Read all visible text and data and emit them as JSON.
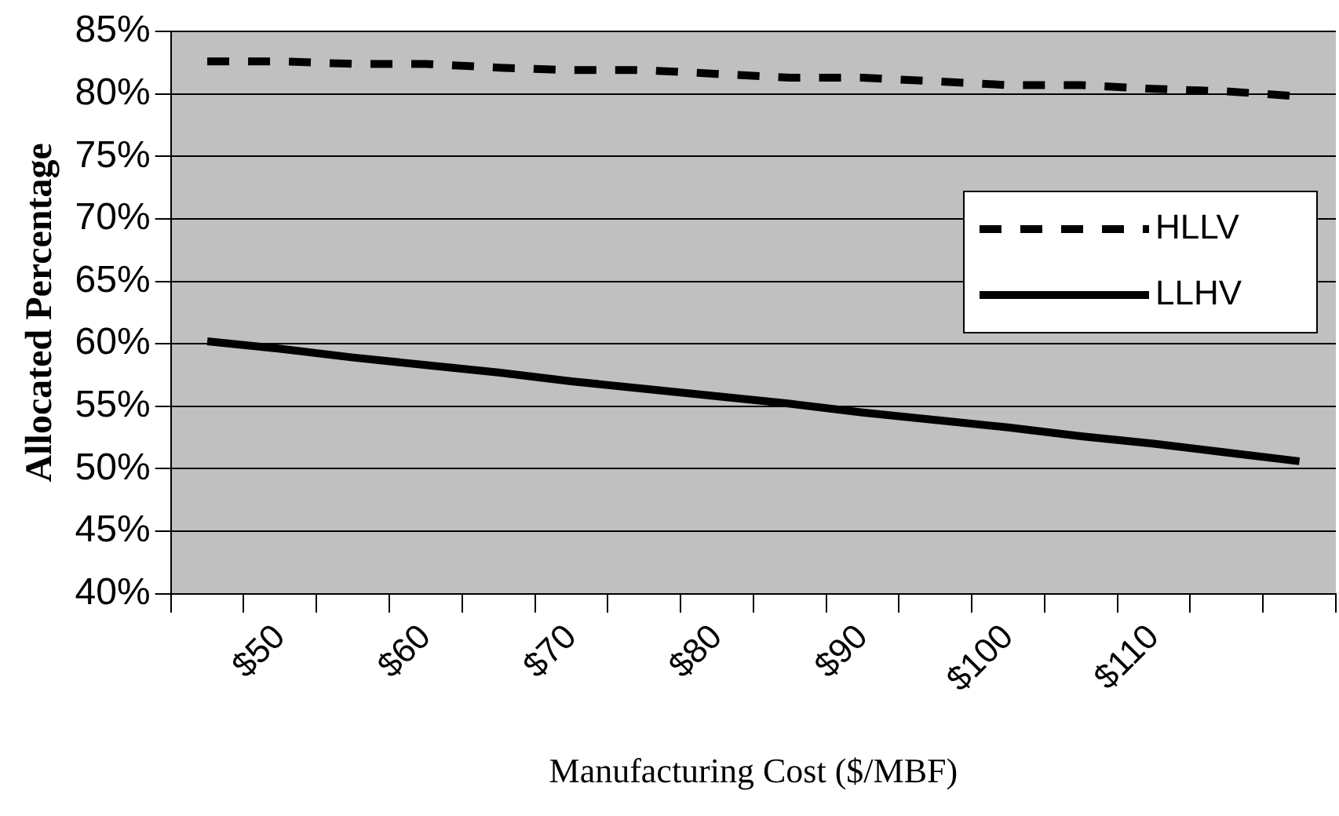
{
  "chart_data": {
    "type": "line",
    "xlabel": "Manufacturing Cost ($/MBF)",
    "ylabel": "Allocated Percentage",
    "categories": [
      null,
      "$50",
      null,
      "$60",
      null,
      "$70",
      null,
      "$80",
      null,
      "$90",
      null,
      "$100",
      null,
      "$110",
      null,
      null
    ],
    "series": [
      {
        "name": "HLLV",
        "color": "#000000",
        "line_style": "dashed",
        "values": [
          82.6,
          82.6,
          82.4,
          82.4,
          82.1,
          81.9,
          81.9,
          81.6,
          81.3,
          81.3,
          81.0,
          80.7,
          80.7,
          80.4,
          80.2,
          79.8
        ]
      },
      {
        "name": "LLHV",
        "color": "#000000",
        "line_style": "solid",
        "values": [
          60.2,
          59.6,
          58.9,
          58.3,
          57.7,
          57.0,
          56.4,
          55.8,
          55.2,
          54.5,
          53.9,
          53.3,
          52.6,
          52.0,
          51.3,
          50.6
        ]
      }
    ],
    "ylim": [
      40,
      85
    ],
    "yticks": [
      {
        "value": 40,
        "label": "40%"
      },
      {
        "value": 45,
        "label": "45%"
      },
      {
        "value": 50,
        "label": "50%"
      },
      {
        "value": 55,
        "label": "55%"
      },
      {
        "value": 60,
        "label": "60%"
      },
      {
        "value": 65,
        "label": "65%"
      },
      {
        "value": 70,
        "label": "70%"
      },
      {
        "value": 75,
        "label": "75%"
      },
      {
        "value": 80,
        "label": "80%"
      },
      {
        "value": 85,
        "label": "85%"
      }
    ],
    "grid": "y",
    "legend": "right",
    "marker": "none"
  }
}
